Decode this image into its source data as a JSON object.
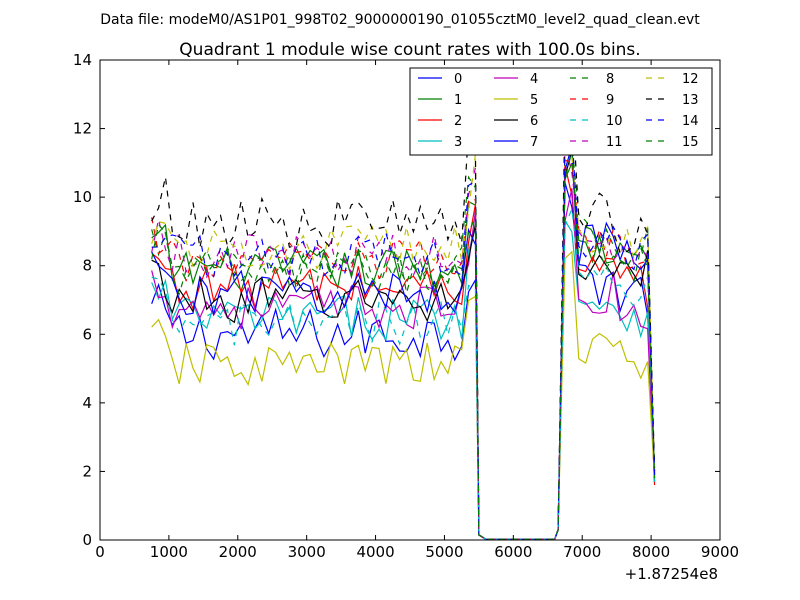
{
  "figure": {
    "suptitle": "Data file: modeM0/AS1P01_998T02_9000000190_01055cztM0_level2_quad_clean.evt"
  },
  "chart_data": {
    "type": "line",
    "title": "Quadrant 1 module wise count rates with 100.0s bins.",
    "xlabel": "",
    "ylabel": "",
    "x_offset_label": "+1.87254e8",
    "xlim": [
      0,
      9000
    ],
    "ylim": [
      0,
      14
    ],
    "xticks": [
      0,
      1000,
      2000,
      3000,
      4000,
      5000,
      6000,
      7000,
      8000,
      9000
    ],
    "yticks": [
      0,
      2,
      4,
      6,
      8,
      10,
      12,
      14
    ],
    "grid": false,
    "legend": {
      "location": "upper right",
      "columns": 4
    },
    "x_segments": [
      {
        "start": 750,
        "end": 5450,
        "step": 100
      },
      {
        "start": 5500,
        "end": 5600,
        "step": 100
      },
      {
        "start": 5600,
        "end": 6600,
        "step": 100
      },
      {
        "start": 6650,
        "end": 6650,
        "step": 100
      },
      {
        "start": 6750,
        "end": 7950,
        "step": 100
      },
      {
        "start": 8050,
        "end": 8050,
        "step": 100
      }
    ],
    "series": [
      {
        "name": "0",
        "color": "#0000ff",
        "dash": "solid",
        "active_mean": 6.0,
        "late_mean": 7.6,
        "noise": 0.35,
        "drop_end": 1.7
      },
      {
        "name": "1",
        "color": "#008000",
        "dash": "solid",
        "active_mean": 7.9,
        "late_mean": 8.5,
        "noise": 0.3,
        "drop_end": 1.8
      },
      {
        "name": "2",
        "color": "#ff0000",
        "dash": "solid",
        "active_mean": 7.4,
        "late_mean": 7.8,
        "noise": 0.3,
        "drop_end": 1.6
      },
      {
        "name": "3",
        "color": "#00bfbf",
        "dash": "solid",
        "active_mean": 6.5,
        "late_mean": 7.0,
        "noise": 0.3,
        "drop_end": 1.9
      },
      {
        "name": "4",
        "color": "#bf00bf",
        "dash": "solid",
        "active_mean": 6.8,
        "late_mean": 7.2,
        "noise": 0.3,
        "drop_end": 1.7
      },
      {
        "name": "5",
        "color": "#bfbf00",
        "dash": "solid",
        "active_mean": 5.1,
        "late_mean": 5.6,
        "noise": 0.3,
        "drop_end": 1.8
      },
      {
        "name": "6",
        "color": "#000000",
        "dash": "solid",
        "active_mean": 7.0,
        "late_mean": 8.2,
        "noise": 0.3,
        "drop_end": 1.9
      },
      {
        "name": "7",
        "color": "#0000ff",
        "dash": "solid",
        "active_mean": 7.2,
        "late_mean": 8.6,
        "noise": 0.3,
        "drop_end": 2.0
      },
      {
        "name": "8",
        "color": "#008000",
        "dash": "dashed",
        "active_mean": 7.8,
        "late_mean": 8.9,
        "noise": 0.3,
        "drop_end": 1.9
      },
      {
        "name": "9",
        "color": "#ff0000",
        "dash": "dashed",
        "active_mean": 8.1,
        "late_mean": 8.6,
        "noise": 0.3,
        "drop_end": 1.8
      },
      {
        "name": "10",
        "color": "#00bfbf",
        "dash": "dashed",
        "active_mean": 6.3,
        "late_mean": 7.5,
        "noise": 0.3,
        "drop_end": 1.7
      },
      {
        "name": "11",
        "color": "#bf00bf",
        "dash": "dashed",
        "active_mean": 8.3,
        "late_mean": 8.8,
        "noise": 0.3,
        "drop_end": 1.8
      },
      {
        "name": "12",
        "color": "#bfbf00",
        "dash": "dashed",
        "active_mean": 8.5,
        "late_mean": 9.0,
        "noise": 0.3,
        "drop_end": 1.9
      },
      {
        "name": "13",
        "color": "#000000",
        "dash": "dashed",
        "active_mean": 9.2,
        "late_mean": 9.5,
        "noise": 0.35,
        "drop_end": 2.1
      },
      {
        "name": "14",
        "color": "#0000ff",
        "dash": "dashed",
        "active_mean": 8.3,
        "late_mean": 8.8,
        "noise": 0.3,
        "drop_end": 1.8
      },
      {
        "name": "15",
        "color": "#008000",
        "dash": "dashed",
        "active_mean": 7.9,
        "late_mean": 8.5,
        "noise": 0.3,
        "drop_end": 1.8
      }
    ]
  }
}
